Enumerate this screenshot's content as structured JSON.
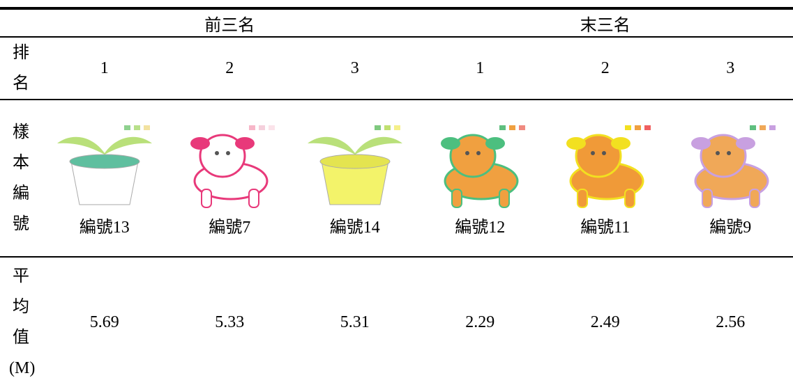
{
  "table": {
    "header": [
      "前三名",
      "末三名"
    ],
    "rank_label": "排名",
    "ranks": [
      1,
      2,
      3,
      1,
      2,
      3
    ],
    "sample_label": "樣本編號",
    "samples": [
      "編號13",
      "編號7",
      "編號14",
      "編號12",
      "編號11",
      "編號9"
    ],
    "mean_label": "平均值(M)",
    "means": [
      5.69,
      5.33,
      5.31,
      2.29,
      2.49,
      2.56
    ]
  }
}
